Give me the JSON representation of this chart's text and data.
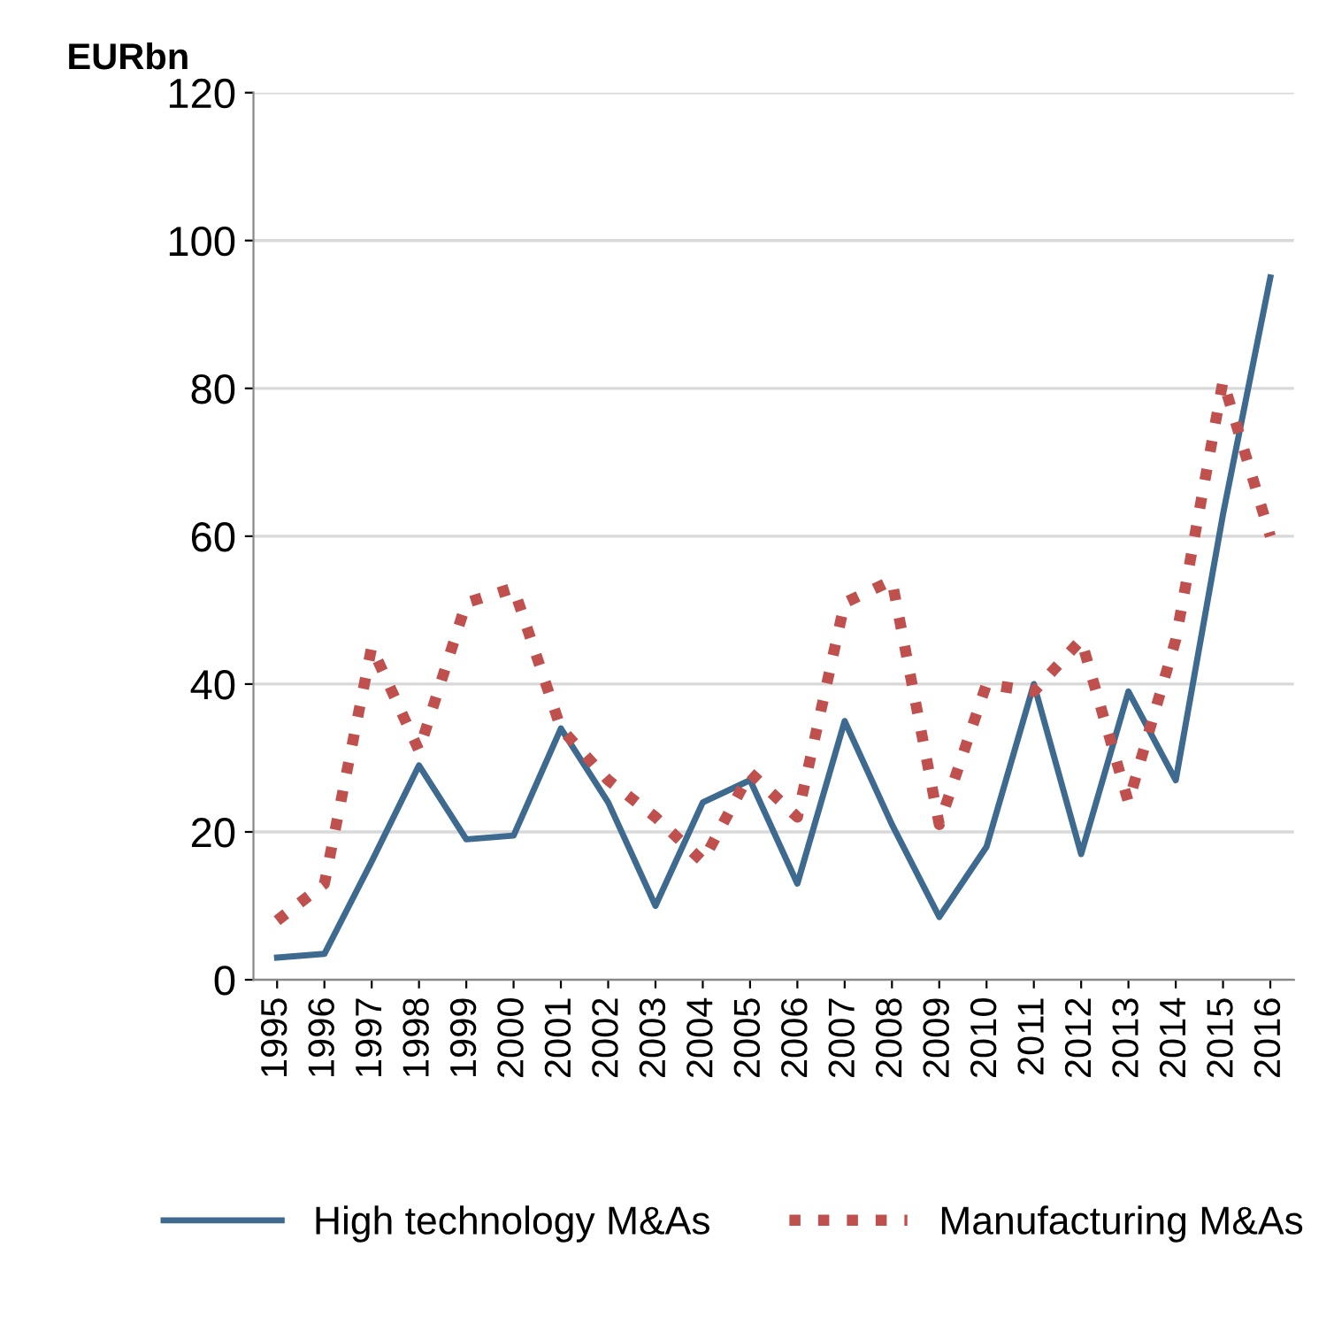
{
  "chart_data": {
    "type": "line",
    "ylabel": "EURbn",
    "categories": [
      "1995",
      "1996",
      "1997",
      "1998",
      "1999",
      "2000",
      "2001",
      "2002",
      "2003",
      "2004",
      "2005",
      "2006",
      "2007",
      "2008",
      "2009",
      "2010",
      "2011",
      "2012",
      "2013",
      "2014",
      "2015",
      "2016"
    ],
    "series": [
      {
        "name": "High technology M&As",
        "color": "#3d6a8e",
        "line_style": "solid",
        "values": [
          3,
          3.5,
          16,
          29,
          19,
          19.5,
          34,
          24,
          10,
          24,
          27,
          13,
          35,
          21,
          8.5,
          18,
          40,
          17,
          39,
          27,
          63,
          95
        ]
      },
      {
        "name": "Manufacturing M&As",
        "color": "#c0504d",
        "line_style": "dotted",
        "values": [
          8,
          13,
          45,
          31,
          51,
          53,
          34,
          27,
          22,
          16,
          28,
          22,
          51,
          54,
          21,
          40,
          39,
          46,
          24,
          46,
          81,
          60
        ]
      }
    ],
    "ylim": [
      0,
      120
    ],
    "yticks": [
      0,
      20,
      40,
      60,
      80,
      100,
      120
    ],
    "grid": "y",
    "legend": "bottom"
  }
}
